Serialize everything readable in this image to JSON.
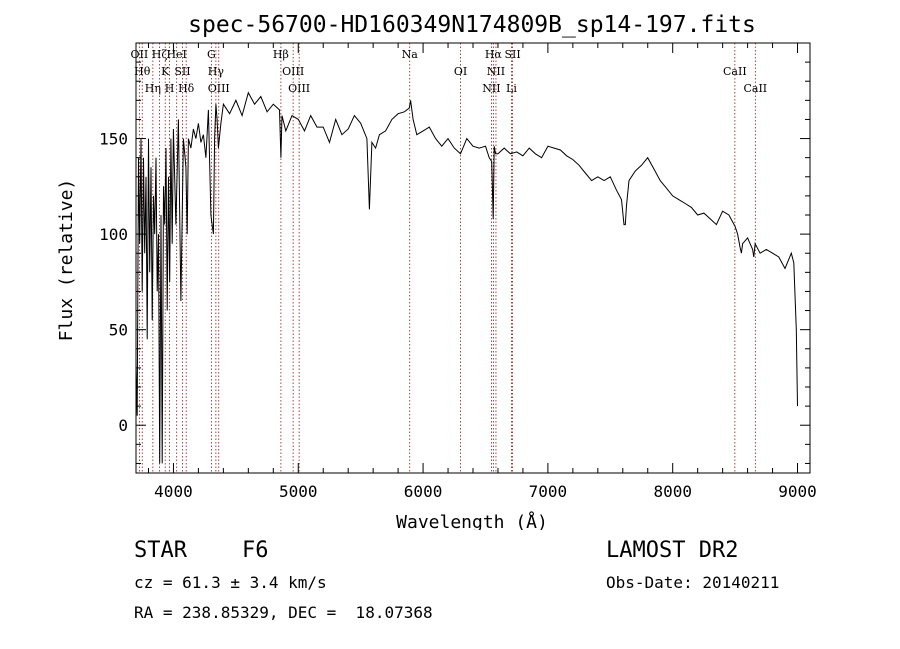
{
  "chart_data": {
    "type": "line",
    "title": "spec-56700-HD160349N174809B_sp14-197.fits",
    "xlabel": "Wavelength (Å)",
    "ylabel": "Flux (relative)",
    "xlim": [
      3700,
      9100
    ],
    "ylim": [
      -25,
      200
    ],
    "x_ticks": [
      4000,
      5000,
      6000,
      7000,
      8000,
      9000
    ],
    "y_ticks": [
      0,
      50,
      100,
      150
    ],
    "series": [
      {
        "name": "spectrum",
        "x": [
          3700,
          3710,
          3720,
          3730,
          3740,
          3750,
          3760,
          3770,
          3780,
          3790,
          3800,
          3810,
          3820,
          3830,
          3840,
          3850,
          3860,
          3870,
          3880,
          3890,
          3900,
          3910,
          3920,
          3930,
          3940,
          3950,
          3960,
          3970,
          3980,
          3990,
          4000,
          4020,
          4040,
          4060,
          4080,
          4100,
          4110,
          4120,
          4140,
          4160,
          4180,
          4200,
          4220,
          4240,
          4260,
          4280,
          4300,
          4310,
          4320,
          4330,
          4340,
          4350,
          4360,
          4380,
          4400,
          4450,
          4500,
          4550,
          4600,
          4650,
          4700,
          4750,
          4800,
          4850,
          4861,
          4870,
          4900,
          4950,
          5000,
          5050,
          5100,
          5150,
          5200,
          5250,
          5300,
          5350,
          5400,
          5450,
          5500,
          5550,
          5570,
          5590,
          5620,
          5650,
          5700,
          5750,
          5800,
          5850,
          5890,
          5900,
          5920,
          5950,
          6000,
          6050,
          6100,
          6150,
          6200,
          6250,
          6300,
          6350,
          6400,
          6450,
          6500,
          6530,
          6550,
          6562,
          6570,
          6580,
          6600,
          6650,
          6700,
          6750,
          6800,
          6850,
          6900,
          6950,
          7000,
          7050,
          7100,
          7150,
          7200,
          7250,
          7300,
          7350,
          7400,
          7450,
          7500,
          7550,
          7590,
          7610,
          7620,
          7630,
          7650,
          7700,
          7750,
          7800,
          7850,
          7900,
          7950,
          8000,
          8050,
          8100,
          8150,
          8200,
          8250,
          8300,
          8350,
          8400,
          8450,
          8500,
          8520,
          8540,
          8550,
          8560,
          8600,
          8640,
          8650,
          8660,
          8700,
          8750,
          8800,
          8850,
          8900,
          8950,
          8970,
          8990,
          9000
        ],
        "values": [
          32,
          5,
          140,
          95,
          150,
          70,
          140,
          90,
          130,
          45,
          150,
          80,
          135,
          55,
          120,
          100,
          140,
          70,
          100,
          -20,
          110,
          -20,
          125,
          105,
          145,
          60,
          130,
          75,
          150,
          95,
          155,
          105,
          160,
          65,
          150,
          135,
          100,
          150,
          145,
          155,
          150,
          158,
          148,
          152,
          140,
          165,
          110,
          105,
          100,
          150,
          168,
          160,
          145,
          158,
          168,
          163,
          170,
          162,
          174,
          168,
          172,
          164,
          168,
          165,
          140,
          162,
          154,
          162,
          160,
          154,
          162,
          156,
          156,
          148,
          160,
          152,
          155,
          162,
          158,
          150,
          113,
          148,
          145,
          152,
          154,
          160,
          163,
          164,
          166,
          170,
          160,
          152,
          154,
          156,
          150,
          146,
          150,
          145,
          142,
          150,
          146,
          145,
          146,
          140,
          138,
          108,
          146,
          142,
          142,
          145,
          142,
          143,
          141,
          145,
          142,
          140,
          146,
          145,
          144,
          141,
          139,
          136,
          132,
          128,
          130,
          128,
          130,
          123,
          118,
          105,
          105,
          115,
          128,
          133,
          136,
          140,
          134,
          128,
          124,
          120,
          118,
          116,
          114,
          110,
          111,
          108,
          105,
          112,
          110,
          104,
          100,
          93,
          90,
          95,
          98,
          92,
          88,
          95,
          90,
          92,
          90,
          88,
          82,
          90,
          85,
          50,
          10
        ]
      }
    ],
    "lines": [
      {
        "label": "OII",
        "wl": 3727
      },
      {
        "label": "Hθ",
        "wl": 3750
      },
      {
        "label": "Hη",
        "wl": 3835
      },
      {
        "label": "Hζ",
        "wl": 3889
      },
      {
        "label": "K",
        "wl": 3934
      },
      {
        "label": "H",
        "wl": 3969
      },
      {
        "label": "HeI",
        "wl": 4026
      },
      {
        "label": "SII",
        "wl": 4072
      },
      {
        "label": "Hδ",
        "wl": 4102
      },
      {
        "label": "G",
        "wl": 4304
      },
      {
        "label": "Hγ",
        "wl": 4340
      },
      {
        "label": "OIII",
        "wl": 4363
      },
      {
        "label": "Hβ",
        "wl": 4861
      },
      {
        "label": "OIII",
        "wl": 4959
      },
      {
        "label": "OIII",
        "wl": 5007
      },
      {
        "label": "Na",
        "wl": 5893
      },
      {
        "label": "OI",
        "wl": 6300
      },
      {
        "label": "NII",
        "wl": 6548
      },
      {
        "label": "Hα",
        "wl": 6563
      },
      {
        "label": "NII",
        "wl": 6584
      },
      {
        "label": "Li",
        "wl": 6708
      },
      {
        "label": "SII",
        "wl": 6717
      },
      {
        "label": "CaII",
        "wl": 8498
      },
      {
        "label": "CaII",
        "wl": 8662
      }
    ]
  },
  "info": {
    "obj_class": "STAR",
    "subclass": "F6",
    "survey": "LAMOST DR2",
    "cz": "cz = 61.3 ± 3.4 km/s",
    "obs_date": "Obs-Date: 20140211",
    "radec": "RA = 238.85329, DEC =  18.07368"
  },
  "colors": {
    "spectrum": "#000000",
    "line_marker": "#8b1a1a",
    "axis": "#000000"
  }
}
